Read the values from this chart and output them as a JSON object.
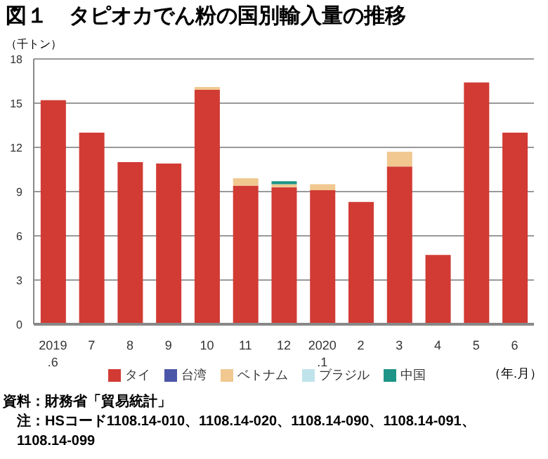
{
  "chart_data": {
    "type": "bar",
    "title": "図１　タピオカでん粉の国別輸入量の推移",
    "ylabel": "（千トン）",
    "xlabel": "（年.月）",
    "categories": [
      "2019\n.6",
      "7",
      "8",
      "9",
      "10",
      "11",
      "12",
      "2020\n.1",
      "2",
      "3",
      "4",
      "5",
      "6"
    ],
    "series": [
      {
        "name": "タイ",
        "color": "#d13b34",
        "values": [
          15.2,
          13.0,
          11.0,
          10.9,
          15.9,
          9.4,
          9.3,
          9.1,
          8.3,
          10.7,
          4.7,
          16.4,
          13.0
        ]
      },
      {
        "name": "台湾",
        "color": "#4b56a8",
        "values": [
          null,
          null,
          null,
          null,
          null,
          null,
          null,
          null,
          null,
          null,
          null,
          null,
          null
        ]
      },
      {
        "name": "ベトナム",
        "color": "#f0c890",
        "values": [
          null,
          null,
          null,
          null,
          0.2,
          0.5,
          0.2,
          0.4,
          null,
          1.0,
          null,
          null,
          null
        ]
      },
      {
        "name": "ブラジル",
        "color": "#bfe3ea",
        "values": [
          null,
          null,
          null,
          null,
          null,
          null,
          null,
          null,
          null,
          null,
          null,
          null,
          null
        ]
      },
      {
        "name": "中国",
        "color": "#1e9488",
        "values": [
          null,
          null,
          null,
          null,
          null,
          null,
          0.2,
          null,
          null,
          null,
          null,
          null,
          null
        ]
      }
    ],
    "stacked": true,
    "ylim": [
      0,
      18
    ],
    "yticks": [
      0,
      3,
      6,
      9,
      12,
      15,
      18
    ],
    "grid": "y",
    "legend": "bottom",
    "annotations": [
      "資料：財務省「貿易統計」",
      "注：HSコード1108.14-010、1108.14-020、1108.14-090、1108.14-091、1108.14-099"
    ]
  }
}
